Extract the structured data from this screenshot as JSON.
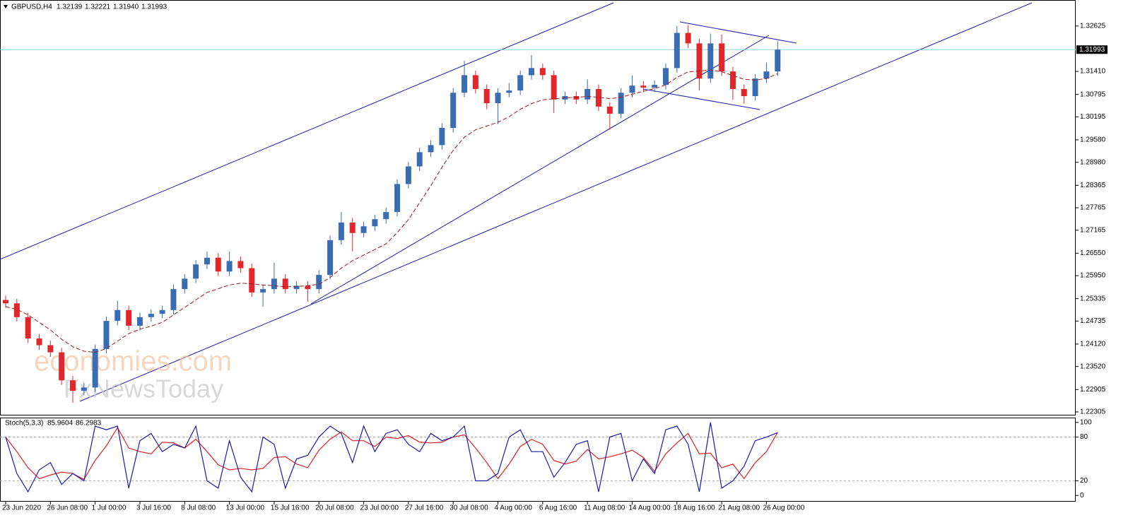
{
  "chart_data": [
    {
      "type": "candlestick",
      "title": "GBPUSD,H4",
      "header_values": [
        1.32139,
        1.32221,
        {
          "value": 1.3194,
          "label": "1.31940"
        },
        1.31993
      ],
      "categories": [
        "23 Jun 2020",
        null,
        null,
        null,
        "26 Jun 08:00",
        null,
        null,
        null,
        "1 Jul 00:00",
        null,
        null,
        null,
        "3 Jul 16:00",
        null,
        null,
        null,
        "8 Jul 08:00",
        null,
        null,
        null,
        "13 Jul 00:00",
        null,
        null,
        null,
        "15 Jul 16:00",
        null,
        null,
        null,
        "20 Jul 08:00",
        null,
        null,
        null,
        "23 Jul 00:00",
        null,
        null,
        null,
        "27 Jul 16:00",
        null,
        null,
        null,
        "30 Jul 08:00",
        null,
        null,
        null,
        "4 Aug 00:00",
        null,
        null,
        null,
        "6 Aug 16:00",
        null,
        null,
        null,
        "11 Aug 08:00",
        null,
        null,
        null,
        "14 Aug 00:00",
        null,
        null,
        null,
        "18 Aug 16:00",
        null,
        null,
        null,
        "21 Aug 08:00",
        null,
        null,
        null,
        "26 Aug 00:00",
        null
      ],
      "open": [
        1.253,
        1.2521,
        1.2484,
        1.2427,
        1.2409,
        1.239,
        1.2315,
        1.2287,
        1.2296,
        1.2399,
        1.2474,
        1.2503,
        1.2461,
        1.2484,
        1.2493,
        1.2503,
        1.2559,
        1.2587,
        1.2625,
        1.2643,
        1.2606,
        1.2634,
        1.2615,
        1.255,
        1.2559,
        1.2587,
        1.2559,
        1.2568,
        1.2559,
        1.2597,
        1.269,
        1.2737,
        1.2709,
        1.2727,
        1.2746,
        1.2765,
        1.284,
        1.2887,
        1.2925,
        1.2944,
        1.299,
        1.3084,
        1.3131,
        1.3094,
        1.3056,
        1.3084,
        1.309,
        1.3131,
        1.315,
        1.3131,
        1.3066,
        1.3075,
        1.3066,
        1.3094,
        1.3047,
        1.3028,
        1.3084,
        1.3103,
        1.3098,
        1.3105,
        1.315,
        1.3244,
        1.3216,
        1.3122,
        1.3216,
        1.3141,
        1.3094,
        1.3075,
        1.3122,
        1.3141
      ],
      "high": [
        1.2542,
        1.2533,
        1.2496,
        1.2439,
        1.2421,
        1.2402,
        1.2327,
        1.2308,
        1.2411,
        1.2486,
        1.2528,
        1.2515,
        1.2496,
        1.2505,
        1.2515,
        1.2571,
        1.2599,
        1.2637,
        1.266,
        1.2655,
        1.266,
        1.2646,
        1.2627,
        1.2571,
        1.263,
        1.2599,
        1.258,
        1.258,
        1.2609,
        1.2702,
        1.2765,
        1.2749,
        1.2739,
        1.2758,
        1.2777,
        1.2852,
        1.2899,
        1.2937,
        1.2956,
        1.3002,
        1.3096,
        1.317,
        1.3143,
        1.3106,
        1.3096,
        1.311,
        1.3143,
        1.3185,
        1.3162,
        1.3143,
        1.3087,
        1.3087,
        1.312,
        1.3106,
        1.3059,
        1.3096,
        1.313,
        1.3115,
        1.3117,
        1.3162,
        1.3262,
        1.3265,
        1.3228,
        1.3242,
        1.324,
        1.3153,
        1.3106,
        1.3134,
        1.3165,
        1.3222
      ],
      "low": [
        1.2509,
        1.2472,
        1.2415,
        1.2397,
        1.2378,
        1.2303,
        1.2255,
        1.2275,
        1.2284,
        1.2387,
        1.2462,
        1.2449,
        1.2449,
        1.2472,
        1.2481,
        1.2491,
        1.2547,
        1.2575,
        1.2613,
        1.2594,
        1.2594,
        1.2603,
        1.2538,
        1.2512,
        1.2547,
        1.2547,
        1.2547,
        1.2525,
        1.2547,
        1.2585,
        1.2678,
        1.266,
        1.2697,
        1.2715,
        1.2734,
        1.2753,
        1.2828,
        1.2875,
        1.2913,
        1.2932,
        1.2978,
        1.3072,
        1.3082,
        1.304,
        1.3,
        1.3072,
        1.3078,
        1.3119,
        1.3119,
        1.303,
        1.3054,
        1.3054,
        1.3054,
        1.3035,
        1.2985,
        1.3016,
        1.3072,
        1.3086,
        1.3086,
        1.3093,
        1.3138,
        1.3204,
        1.309,
        1.311,
        1.3129,
        1.3065,
        1.3055,
        1.3063,
        1.311,
        1.3129
      ],
      "close": [
        1.2521,
        1.2484,
        1.2427,
        1.2409,
        1.239,
        1.2315,
        1.2287,
        1.2296,
        1.2399,
        1.2474,
        1.2503,
        1.2461,
        1.2484,
        1.2493,
        1.2503,
        1.2559,
        1.2587,
        1.2625,
        1.2643,
        1.2606,
        1.2634,
        1.2615,
        1.255,
        1.2559,
        1.2587,
        1.2559,
        1.2568,
        1.2559,
        1.2597,
        1.269,
        1.2737,
        1.2709,
        1.2727,
        1.2746,
        1.2765,
        1.284,
        1.2887,
        1.2925,
        1.2944,
        1.299,
        1.3084,
        1.3131,
        1.3094,
        1.3056,
        1.3084,
        1.309,
        1.3131,
        1.315,
        1.3131,
        1.3066,
        1.3075,
        1.3066,
        1.3094,
        1.3047,
        1.3028,
        1.3084,
        1.3103,
        1.3098,
        1.3105,
        1.315,
        1.3244,
        1.3216,
        1.3122,
        1.3216,
        1.3141,
        1.3094,
        1.3075,
        1.3122,
        1.3141,
        1.31993
      ],
      "up_color": "#3a6cb3",
      "down_color": "#e3262b",
      "moving_average": {
        "color": "#9b1c1c",
        "values": [
          1.2512,
          1.2505,
          1.249,
          1.247,
          1.245,
          1.2425,
          1.2405,
          1.2393,
          1.239,
          1.24,
          1.242,
          1.244,
          1.2452,
          1.246,
          1.247,
          1.249,
          1.251,
          1.253,
          1.255,
          1.256,
          1.257,
          1.2575,
          1.2573,
          1.257,
          1.2568,
          1.2565,
          1.2566,
          1.2568,
          1.2572,
          1.259,
          1.2615,
          1.2635,
          1.265,
          1.2665,
          1.268,
          1.271,
          1.2745,
          1.279,
          1.2835,
          1.2885,
          1.293,
          1.2965,
          1.2985,
          1.2995,
          1.3005,
          1.302,
          1.304,
          1.3055,
          1.3065,
          1.3068,
          1.307,
          1.3072,
          1.3074,
          1.3072,
          1.3068,
          1.3072,
          1.308,
          1.3088,
          1.3095,
          1.3105,
          1.3125,
          1.314,
          1.3142,
          1.3145,
          1.314,
          1.313,
          1.312,
          1.3118,
          1.3122,
          1.3135
        ]
      },
      "current_price": 1.31993,
      "current_price_color": "#9ad3e6",
      "ylim": [
        1.22249,
        1.33282
      ],
      "yticks": [
        1.32625,
        {
          "value": 1.3141,
          "label": "1.31410"
        },
        1.30795,
        1.30195,
        {
          "value": 1.2958,
          "label": "1.29580"
        },
        {
          "value": 1.2898,
          "label": "1.28980"
        },
        1.28365,
        1.27765,
        1.27165,
        {
          "value": 1.2655,
          "label": "1.26550"
        },
        {
          "value": 1.2595,
          "label": "1.25950"
        },
        1.25335,
        1.24735,
        {
          "value": 1.2412,
          "label": "1.24120"
        },
        {
          "value": 1.2352,
          "label": "1.23520"
        },
        1.22905,
        1.22305
      ],
      "watermarks": [
        "economies.com",
        "FxNewsToday"
      ]
    },
    {
      "type": "line",
      "title": "Stoch(5,3,3)",
      "series": [
        {
          "color": "#1a1aa6",
          "values": [
            80,
            30,
            5,
            35,
            45,
            15,
            30,
            20,
            95,
            90,
            95,
            10,
            75,
            85,
            60,
            70,
            65,
            95,
            20,
            10,
            75,
            25,
            5,
            80,
            70,
            10,
            50,
            55,
            80,
            95,
            85,
            45,
            95,
            60,
            85,
            90,
            70,
            60,
            85,
            75,
            80,
            95,
            20,
            20,
            30,
            80,
            90,
            60,
            60,
            25,
            45,
            70,
            75,
            5,
            80,
            85,
            20,
            50,
            30,
            90,
            95,
            70,
            5,
            100,
            10,
            20,
            40,
            75,
            80,
            85.9604
          ]
        },
        {
          "color": "#e02020",
          "values": [
            80,
            60,
            38,
            23,
            28,
            32,
            30,
            22,
            48,
            68,
            93,
            65,
            60,
            57,
            73,
            72,
            65,
            77,
            60,
            42,
            35,
            37,
            35,
            37,
            52,
            53,
            43,
            38,
            62,
            77,
            87,
            75,
            75,
            67,
            80,
            78,
            82,
            73,
            72,
            73,
            80,
            83,
            65,
            45,
            23,
            43,
            67,
            77,
            70,
            48,
            43,
            47,
            63,
            50,
            53,
            57,
            62,
            52,
            33,
            57,
            72,
            85,
            57,
            58,
            38,
            43,
            23,
            45,
            60,
            86.2983
          ]
        }
      ],
      "ylim": [
        -6.6,
        104.7
      ],
      "yticks": [
        0,
        20,
        80,
        100
      ],
      "levels": [
        20,
        80
      ]
    }
  ]
}
